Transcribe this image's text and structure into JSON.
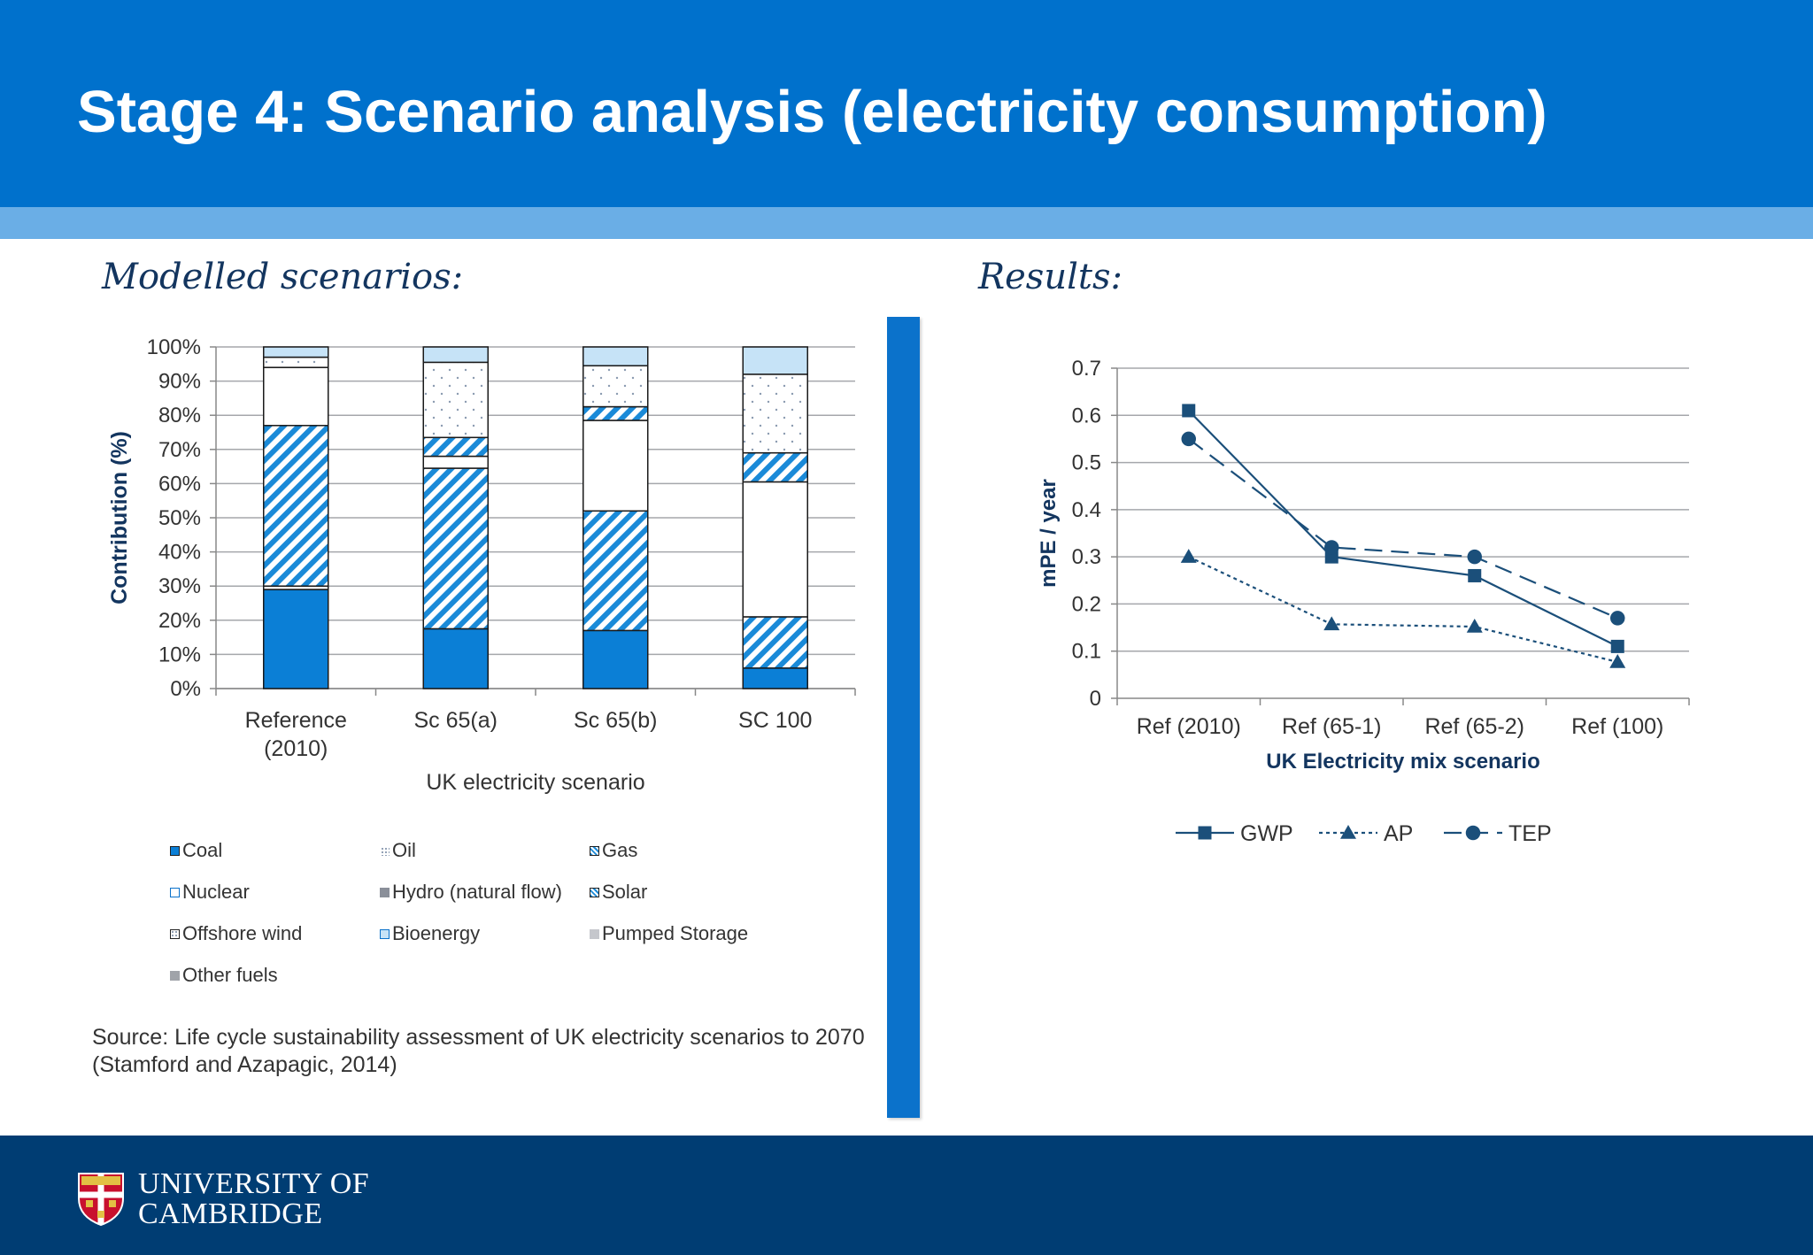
{
  "header": {
    "title": "Stage 4: Scenario analysis (electricity consumption)"
  },
  "left": {
    "heading": "Modelled scenarios:"
  },
  "right": {
    "heading": "Results:"
  },
  "chart_data": [
    {
      "type": "bar",
      "stacked": true,
      "ylabel": "Contribution (%)",
      "xlabel": "UK electricity scenario",
      "ylim": [
        0,
        100
      ],
      "yticks": [
        "0%",
        "10%",
        "20%",
        "30%",
        "40%",
        "50%",
        "60%",
        "70%",
        "80%",
        "90%",
        "100%"
      ],
      "grid": true,
      "legend_position": "bottom",
      "categories": [
        {
          "line1": "Reference",
          "line2": "(2010)"
        },
        {
          "line1": "Sc 65(a)",
          "line2": ""
        },
        {
          "line1": "Sc 65(b)",
          "line2": ""
        },
        {
          "line1": "SC 100",
          "line2": ""
        }
      ],
      "series": [
        {
          "name": "Coal",
          "values": [
            29,
            17.5,
            17,
            6
          ],
          "fill": "#0b7fd6",
          "pattern": "solid"
        },
        {
          "name": "Oil",
          "values": [
            1,
            0,
            0,
            0
          ],
          "fill": "#ffffff",
          "pattern": "dots"
        },
        {
          "name": "Gas",
          "values": [
            47,
            47,
            35,
            15
          ],
          "fill": "#1a8ad8",
          "pattern": "stripes"
        },
        {
          "name": "Nuclear",
          "values": [
            17,
            3.5,
            26.5,
            39.5
          ],
          "fill": "#ffffff",
          "pattern": "solid"
        },
        {
          "name": "Hydro (natural flow)",
          "values": [
            0,
            0,
            0,
            0
          ],
          "fill": "#8a8f99",
          "pattern": "solid"
        },
        {
          "name": "Solar",
          "values": [
            0,
            5.5,
            4,
            8.5
          ],
          "fill": "#1a8ad8",
          "pattern": "stripes"
        },
        {
          "name": "Offshore wind",
          "values": [
            3,
            22,
            12,
            23
          ],
          "fill": "#ffffff",
          "pattern": "dots"
        },
        {
          "name": "Bioenergy",
          "values": [
            3,
            4.5,
            5.5,
            8
          ],
          "fill": "#c6e3f7",
          "pattern": "solid"
        },
        {
          "name": "Pumped Storage",
          "values": [
            0,
            0,
            0,
            0
          ],
          "fill": "#c5c7cc",
          "pattern": "solid"
        },
        {
          "name": "Other fuels",
          "values": [
            0,
            0,
            0,
            0
          ],
          "fill": "#a0a3a9",
          "pattern": "solid"
        }
      ]
    },
    {
      "type": "line",
      "ylabel": "mPE / year",
      "xlabel": "UK Electricity mix scenario",
      "ylim": [
        0,
        0.7
      ],
      "yticks": [
        "0",
        "0.1",
        "0.2",
        "0.3",
        "0.4",
        "0.5",
        "0.6",
        "0.7"
      ],
      "grid": true,
      "legend_position": "bottom",
      "categories": [
        "Ref (2010)",
        "Ref (65-1)",
        "Ref (65-2)",
        "Ref (100)"
      ],
      "series": [
        {
          "name": "GWP",
          "values": [
            0.61,
            0.3,
            0.26,
            0.11
          ],
          "marker": "square",
          "dash": "solid"
        },
        {
          "name": "AP",
          "values": [
            0.3,
            0.157,
            0.152,
            0.077
          ],
          "marker": "triangle",
          "dash": "dotted"
        },
        {
          "name": "TEP",
          "values": [
            0.55,
            0.32,
            0.3,
            0.17
          ],
          "marker": "circle",
          "dash": "dashed"
        }
      ]
    }
  ],
  "source": {
    "text": "Source: Life cycle sustainability assessment of UK electricity scenarios to 2070  (Stamford and Azapagic, 2014)"
  },
  "footer": {
    "logo_line1": "UNIVERSITY OF",
    "logo_line2": "CAMBRIDGE"
  }
}
